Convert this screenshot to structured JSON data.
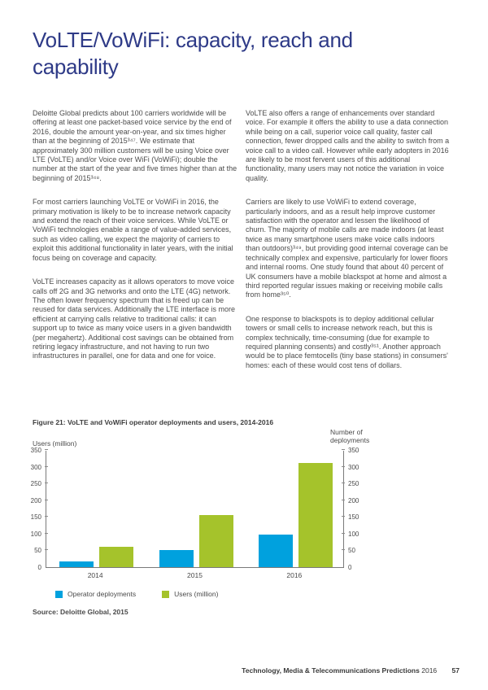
{
  "header": {
    "title": "VoLTE/VoWiFi: capacity, reach and capability"
  },
  "body": {
    "left_column": [
      "Deloitte Global predicts about 100 carriers worldwide will be offering at least one packet-based voice service by the end of 2016, double the amount year-on-year, and six times higher than at the beginning of 2015³⁴⁷. We estimate that approximately 300 million customers will be using Voice over LTE (VoLTE) and/or Voice over WiFi (VoWiFi); double the number at the start of the year and five times higher than at the beginning of 2015³⁴⁸.",
      "For most carriers launching VoLTE or VoWiFi in 2016, the primary motivation is likely to be to increase network capacity and extend the reach of their voice services. While VoLTE or VoWiFi technologies enable a range of value-added services, such as video calling, we expect the majority of carriers to exploit this additional functionality in later years, with the initial focus being on coverage and capacity.",
      "VoLTE increases capacity as it allows operators to move voice calls off 2G and 3G networks and onto the LTE (4G) network. The often lower frequency spectrum that is freed up can be reused for data services. Additionally the LTE interface is more efficient at carrying calls relative to traditional calls: it can support up to twice as many voice users in a given bandwidth (per megahertz). Additional cost savings can be obtained from retiring legacy infrastructure, and not having to run two infrastructures in parallel, one for data and one for voice."
    ],
    "right_column": [
      "VoLTE also offers a range of enhancements over standard voice. For example it offers the ability to use a data connection while being on a call, superior voice call quality, faster call connection, fewer dropped calls and the ability to switch from a voice call to a video call. However while early adopters in 2016 are likely to be most fervent users of this additional functionality, many users may not notice the variation in voice quality.",
      "Carriers are likely to use VoWiFi to extend coverage, particularly indoors, and as a result help improve customer satisfaction with the operator and lessen the likelihood of churn. The majority of mobile calls are made indoors (at least twice as many smartphone users make voice calls indoors than outdoors)³⁴⁹, but providing good internal coverage can be technically complex and expensive, particularly for lower floors and internal rooms. One study found that about 40 percent of UK consumers have a mobile blackspot at home and almost a third reported regular issues making or receiving mobile calls from home³⁵⁰.",
      "One response to blackspots is to deploy additional cellular towers or small cells to increase network reach, but this is complex technically, time-consuming (due for example to required planning consents) and costly³⁵¹. Another approach would be to place femtocells (tiny base stations) in consumers' homes: each of these would cost tens of dollars."
    ]
  },
  "figure": {
    "caption": "Figure 21: VoLTE and VoWiFi operator deployments and users, 2014-2016",
    "left_axis_title": "Users (million)",
    "right_axis_title_line1": "Number of",
    "right_axis_title_line2": "deployments",
    "source": "Source: Deloitte Global, 2015"
  },
  "chart_data": {
    "type": "bar",
    "categories": [
      "2014",
      "2015",
      "2016"
    ],
    "series": [
      {
        "name": "Operator deployments",
        "color": "#00a1de",
        "values": [
          17,
          52,
          97
        ]
      },
      {
        "name": "Users (million)",
        "color": "#a5c32b",
        "values": [
          60,
          155,
          310
        ]
      }
    ],
    "title": "Figure 21: VoLTE and VoWiFi operator deployments and users, 2014-2016",
    "ylabel_left": "Users (million)",
    "ylabel_right": "Number of deployments",
    "ylim": [
      0,
      350
    ],
    "yticks": [
      0,
      50,
      100,
      150,
      200,
      250,
      300,
      350
    ],
    "grid": false,
    "legend_position": "bottom"
  },
  "colors": {
    "title_navy": "#2e3a87",
    "body_text": "#4c4c4c",
    "axis_gray": "#7a7a7a",
    "deployments_blue": "#00a1de",
    "users_green": "#a5c32b"
  },
  "footer": {
    "title": "Technology, Media & Telecommunications Predictions",
    "year": "2016",
    "page": "57"
  }
}
